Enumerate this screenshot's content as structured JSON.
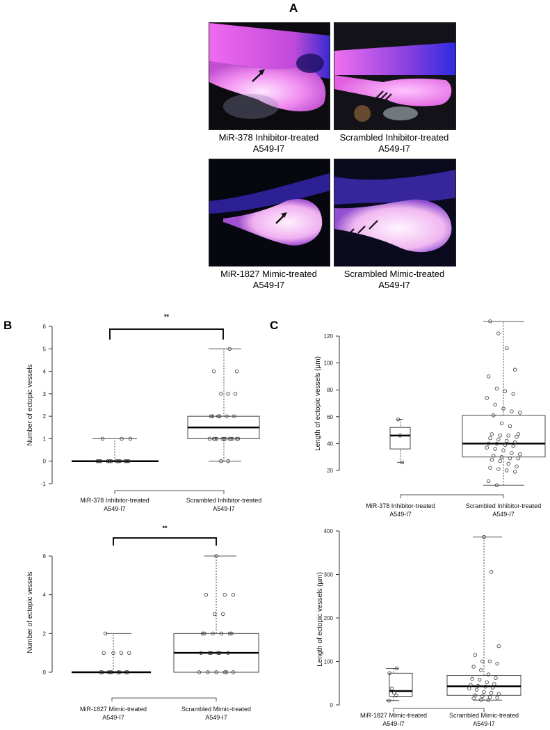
{
  "figure": {
    "panel_labels": {
      "a": "A",
      "b": "B",
      "c": "C"
    },
    "significance": "**"
  },
  "panel_a": {
    "images": [
      {
        "caption_line1": "MiR-378 Inhibitor-treated",
        "caption_line2": "A549-I7",
        "arrows": 1
      },
      {
        "caption_line1": "Scrambled Inhibitor-treated",
        "caption_line2": "A549-I7",
        "arrows": 3
      },
      {
        "caption_line1": "MiR-1827 Mimic-treated",
        "caption_line2": "A549-I7",
        "arrows": 1
      },
      {
        "caption_line1": "Scrambled Mimic-treated",
        "caption_line2": "A549-I7",
        "arrows": 3
      }
    ]
  },
  "chart_data": [
    {
      "id": "B-top",
      "type": "box",
      "title": "",
      "ylabel": "Number of ectopic vessels",
      "xlabel": "",
      "ylim": [
        -1,
        6
      ],
      "yticks": [
        "-1",
        "0",
        "1",
        "2",
        "3",
        "4",
        "5",
        "6"
      ],
      "categories": [
        "MiR-378 Inhibitor-treated A549-I7",
        "Scrambled Inhibitor-treated A549-I7"
      ],
      "category_lines": [
        [
          "MiR-378 Inhibitor-treated",
          "A549-I7"
        ],
        [
          "Scrambled Inhibitor-treated",
          "A549-I7"
        ]
      ],
      "series": [
        {
          "name": "MiR-378 Inhibitor-treated A549-I7",
          "min": 0,
          "q1": 0,
          "median": 0,
          "q3": 0,
          "max": 1,
          "points": [
            0,
            0,
            0,
            0,
            0,
            0,
            0,
            0,
            0,
            0,
            0,
            0,
            1,
            1,
            1
          ]
        },
        {
          "name": "Scrambled Inhibitor-treated A549-I7",
          "min": 0,
          "q1": 1,
          "median": 1.5,
          "q3": 2,
          "max": 5,
          "points": [
            0,
            0,
            1,
            1,
            1,
            1,
            1,
            1,
            1,
            1,
            1,
            1,
            1,
            1,
            2,
            2,
            2,
            2,
            2,
            2,
            3,
            3,
            3,
            4,
            4,
            5
          ]
        }
      ],
      "annotation": "**",
      "grid": false
    },
    {
      "id": "B-bottom",
      "type": "box",
      "ylabel": "Number of ectopic vessels",
      "ylim": [
        0,
        6
      ],
      "yticks": [
        "0",
        "2",
        "4",
        "6"
      ],
      "categories": [
        "MiR-1827 Mimic-treated A549-I7",
        "Scrambled Mimic-treated A549-I7"
      ],
      "category_lines": [
        [
          "MiR-1827 Mimic-treated",
          "A549-I7"
        ],
        [
          "Scrambled Mimic-treated",
          "A549-I7"
        ]
      ],
      "series": [
        {
          "name": "MiR-1827 Mimic-treated A549-I7",
          "min": 0,
          "q1": 0,
          "median": 0,
          "q3": 0,
          "max": 2,
          "points": [
            0,
            0,
            0,
            0,
            0,
            0,
            0,
            0,
            0,
            1,
            1,
            1,
            1,
            2
          ]
        },
        {
          "name": "Scrambled Mimic-treated A549-I7",
          "min": 0,
          "q1": 0,
          "median": 1,
          "q3": 2,
          "max": 6,
          "points": [
            0,
            0,
            0,
            0,
            0,
            0,
            1,
            1,
            1,
            1,
            1,
            1,
            2,
            2,
            2,
            2,
            2,
            2,
            3,
            3,
            4,
            4,
            4,
            6
          ]
        }
      ],
      "annotation": "**",
      "grid": false
    },
    {
      "id": "C-top",
      "type": "box",
      "ylabel": "Length of ectopic vessels (µm)",
      "ylim": [
        20,
        120
      ],
      "yticks": [
        "20",
        "40",
        "60",
        "80",
        "100",
        "120"
      ],
      "categories": [
        "MiR-378 Inhibitor-treated A549-I7",
        "Scrambled Inhibitor-treated A549-I7"
      ],
      "category_lines": [
        [
          "MiR-378 Inhibitor-treated",
          "A549-I7"
        ],
        [
          "Scrambled Inhibitor-treated",
          "A549-I7"
        ]
      ],
      "series": [
        {
          "name": "MiR-378 Inhibitor-treated A549-I7",
          "min": 26,
          "q1": 36,
          "median": 46,
          "q3": 52,
          "max": 58,
          "points": [
            26,
            46,
            58
          ]
        },
        {
          "name": "Scrambled Inhibitor-treated A549-I7",
          "min": 9,
          "q1": 30,
          "median": 40,
          "q3": 61,
          "max": 131,
          "points": [
            9,
            12,
            19,
            20,
            21,
            22,
            23,
            25,
            27,
            28,
            29,
            29,
            30,
            31,
            32,
            33,
            35,
            36,
            37,
            38,
            39,
            40,
            40,
            41,
            42,
            43,
            44,
            45,
            46,
            46,
            47,
            47,
            53,
            55,
            61,
            63,
            64,
            66,
            69,
            74,
            77,
            79,
            81,
            90,
            95,
            111,
            122,
            131
          ]
        }
      ],
      "grid": false
    },
    {
      "id": "C-bottom",
      "type": "box",
      "ylabel": "Length of ectopic vessels (µm)",
      "ylim": [
        0,
        400
      ],
      "yticks": [
        "0",
        "100",
        "200",
        "300",
        "400"
      ],
      "categories": [
        "MiR-1827 Mimic-treated A549-I7",
        "Scrambled Mimic-treated A549-I7"
      ],
      "category_lines": [
        [
          "MiR-1827 Mimic-treated",
          "A549-I7"
        ],
        [
          "Scrambled Mimic-treated",
          "A549-I7"
        ]
      ],
      "series": [
        {
          "name": "MiR-1827 Mimic-treated A549-I7",
          "min": 10,
          "q1": 20,
          "median": 32,
          "q3": 73,
          "max": 84,
          "points": [
            10,
            22,
            28,
            38,
            73,
            84
          ]
        },
        {
          "name": "Scrambled Mimic-treated A549-I7",
          "min": 11,
          "q1": 22,
          "median": 43,
          "q3": 68,
          "max": 386,
          "points": [
            11,
            12,
            15,
            17,
            18,
            20,
            22,
            25,
            28,
            30,
            35,
            38,
            40,
            42,
            44,
            46,
            48,
            52,
            58,
            60,
            62,
            70,
            80,
            88,
            95,
            100,
            100,
            115,
            135,
            306,
            386
          ]
        }
      ],
      "grid": false
    }
  ]
}
